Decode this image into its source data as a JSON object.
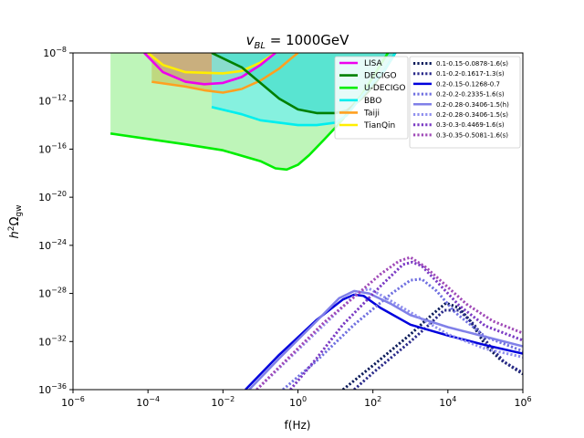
{
  "chart_data": {
    "type": "line",
    "title_main": "v",
    "title_sub": "BL",
    "title_rest": " = 1000GeV",
    "xlabel": "f(Hz)",
    "ylabel_main": "h",
    "ylabel_sup": "2",
    "ylabel_omega": "Ω",
    "ylabel_sub": "gw",
    "x_scale": "log",
    "y_scale": "log",
    "xlim_exp": [
      -6,
      6
    ],
    "ylim_exp": [
      -36,
      -8
    ],
    "x_ticks": [
      {
        "exp": -6,
        "base": "10",
        "label": "−6"
      },
      {
        "exp": -4,
        "base": "10",
        "label": "−4"
      },
      {
        "exp": -2,
        "base": "10",
        "label": "−2"
      },
      {
        "exp": 0,
        "base": "10",
        "label": "0"
      },
      {
        "exp": 2,
        "base": "10",
        "label": "2"
      },
      {
        "exp": 4,
        "base": "10",
        "label": "4"
      },
      {
        "exp": 6,
        "base": "10",
        "label": "6"
      }
    ],
    "y_ticks": [
      {
        "exp": -36,
        "base": "10",
        "label": "−36"
      },
      {
        "exp": -32,
        "base": "10",
        "label": "−32"
      },
      {
        "exp": -28,
        "base": "10",
        "label": "−28"
      },
      {
        "exp": -24,
        "base": "10",
        "label": "−24"
      },
      {
        "exp": -20,
        "base": "10",
        "label": "−20"
      },
      {
        "exp": -16,
        "base": "10",
        "label": "−16"
      },
      {
        "exp": -12,
        "base": "10",
        "label": "−12"
      },
      {
        "exp": -8,
        "base": "10",
        "label": "−8"
      }
    ],
    "detectors": [
      {
        "name": "U-DECIGO",
        "color": "#00ee00",
        "fill": "#aef2a8",
        "fill_opacity": 0.8,
        "points": [
          [
            -5,
            -14.7
          ],
          [
            -3,
            -15.6
          ],
          [
            -2,
            -16.1
          ],
          [
            -1,
            -17.0
          ],
          [
            -0.6,
            -17.6
          ],
          [
            -0.3,
            -17.7
          ],
          [
            0,
            -17.3
          ],
          [
            0.3,
            -16.5
          ],
          [
            0.7,
            -15.2
          ],
          [
            1.0,
            -14.2
          ],
          [
            1.2,
            -13.5
          ],
          [
            1.5,
            -12.2
          ],
          [
            1.7,
            -11.5
          ],
          [
            2.0,
            -10.0
          ],
          [
            2.2,
            -9.0
          ],
          [
            2.5,
            -7.5
          ]
        ]
      },
      {
        "name": "TianQin",
        "color": "#ffee00",
        "fill": "#eef088",
        "fill_opacity": 0.8,
        "points": [
          [
            -4,
            -8.0
          ],
          [
            -3.6,
            -9.0
          ],
          [
            -3,
            -9.6
          ],
          [
            -2,
            -9.7
          ],
          [
            -1.5,
            -9.5
          ],
          [
            -1,
            -8.8
          ],
          [
            -0.6,
            -8.0
          ]
        ]
      },
      {
        "name": "LISA",
        "color": "#ee00ee",
        "fill": "#d07ec0",
        "fill_opacity": 0.75,
        "points": [
          [
            -4.1,
            -8.0
          ],
          [
            -3.6,
            -9.6
          ],
          [
            -3,
            -10.4
          ],
          [
            -2.5,
            -10.6
          ],
          [
            -2,
            -10.5
          ],
          [
            -1.5,
            -10.0
          ],
          [
            -1,
            -9.0
          ],
          [
            -0.6,
            -8.0
          ]
        ]
      },
      {
        "name": "Taiji",
        "color": "#ffa020",
        "fill": "#c0c050",
        "fill_opacity": 0.55,
        "points": [
          [
            -3.9,
            -10.4
          ],
          [
            -3,
            -10.8
          ],
          [
            -2.5,
            -11.1
          ],
          [
            -2,
            -11.3
          ],
          [
            -1.5,
            -11.0
          ],
          [
            -1,
            -10.3
          ],
          [
            -0.5,
            -9.3
          ],
          [
            -0.2,
            -8.5
          ],
          [
            0,
            -8.0
          ]
        ]
      },
      {
        "name": "DECIGO",
        "color": "#008000",
        "fill": "#10c080",
        "fill_opacity": 0.85,
        "points": [
          [
            -2.3,
            -8.0
          ],
          [
            -1.5,
            -9.2
          ],
          [
            -1,
            -10.5
          ],
          [
            -0.5,
            -11.8
          ],
          [
            0,
            -12.7
          ],
          [
            0.5,
            -13.0
          ],
          [
            1,
            -13.0
          ],
          [
            1.3,
            -12.8
          ],
          [
            1.7,
            -11.8
          ],
          [
            2,
            -10.8
          ],
          [
            2.3,
            -9.5
          ],
          [
            2.6,
            -8.0
          ]
        ]
      },
      {
        "name": "BBO",
        "color": "#00eeee",
        "fill": "#6ef0f0",
        "fill_opacity": 0.7,
        "points": [
          [
            -2.3,
            -12.5
          ],
          [
            -1.5,
            -13.1
          ],
          [
            -1,
            -13.6
          ],
          [
            0,
            -14.0
          ],
          [
            0.5,
            -14.0
          ],
          [
            1,
            -13.8
          ],
          [
            1.3,
            -13.2
          ],
          [
            1.6,
            -12.0
          ],
          [
            2,
            -10.5
          ],
          [
            2.3,
            -9.5
          ],
          [
            2.6,
            -8.0
          ]
        ]
      }
    ],
    "series": [
      {
        "name": "0.1-0.15-0.0878-1.6(s)",
        "color": "#0a1a5a",
        "style": "dotted",
        "width": 3,
        "points": [
          [
            1.2,
            -36
          ],
          [
            2,
            -34
          ],
          [
            3,
            -31.4
          ],
          [
            3.6,
            -29.7
          ],
          [
            3.95,
            -28.8
          ],
          [
            4.3,
            -29.2
          ],
          [
            4.6,
            -30.3
          ],
          [
            5.0,
            -32.3
          ],
          [
            5.4,
            -33.5
          ],
          [
            6,
            -34.7
          ]
        ]
      },
      {
        "name": "0.1-0.2-0.1617-1.3(s)",
        "color": "#2a2a8a",
        "style": "dotted",
        "width": 3,
        "points": [
          [
            1.5,
            -36
          ],
          [
            2,
            -34.6
          ],
          [
            3,
            -32
          ],
          [
            3.5,
            -30.6
          ],
          [
            3.9,
            -29.4
          ],
          [
            4.3,
            -29.4
          ],
          [
            4.7,
            -30.6
          ],
          [
            5.1,
            -32.3
          ],
          [
            5.5,
            -33.7
          ],
          [
            6,
            -34.6
          ]
        ]
      },
      {
        "name": "0.2-0.15-0.1268-0.7",
        "color": "#0000dd",
        "style": "solid",
        "width": 2.5,
        "points": [
          [
            -1.4,
            -36
          ],
          [
            -0.5,
            -33.1
          ],
          [
            0.5,
            -30.2
          ],
          [
            1.2,
            -28.5
          ],
          [
            1.5,
            -28.1
          ],
          [
            1.75,
            -28.2
          ],
          [
            2.2,
            -29.2
          ],
          [
            3,
            -30.6
          ],
          [
            4,
            -31.5
          ],
          [
            5,
            -32.3
          ],
          [
            6,
            -33.0
          ]
        ]
      },
      {
        "name": "0.2-0.2-0.2335-1.6(s)",
        "color": "#7070e0",
        "style": "dotted",
        "width": 3,
        "points": [
          [
            -0.4,
            -36
          ],
          [
            0.5,
            -33.6
          ],
          [
            1.5,
            -30.6
          ],
          [
            2.5,
            -28.0
          ],
          [
            3.0,
            -26.9
          ],
          [
            3.3,
            -26.8
          ],
          [
            3.7,
            -27.8
          ],
          [
            4.2,
            -29.6
          ],
          [
            5,
            -31.6
          ],
          [
            6,
            -32.8
          ]
        ]
      },
      {
        "name": "0.2-0.28-0.3406-1.5(h)",
        "color": "#8080e8",
        "style": "solid",
        "width": 2.5,
        "points": [
          [
            -1.3,
            -36
          ],
          [
            -0.5,
            -33.4
          ],
          [
            0.5,
            -30.3
          ],
          [
            1.1,
            -28.4
          ],
          [
            1.5,
            -27.8
          ],
          [
            1.9,
            -28.0
          ],
          [
            2.5,
            -28.9
          ],
          [
            3,
            -29.8
          ],
          [
            4,
            -30.8
          ],
          [
            5,
            -31.6
          ],
          [
            6,
            -32.4
          ]
        ]
      },
      {
        "name": "0.2-0.28-0.3406-1.5(s)",
        "color": "#9090ee",
        "style": "dotted",
        "width": 3,
        "points": [
          [
            -1.1,
            -36
          ],
          [
            -0.3,
            -33.6
          ],
          [
            0.6,
            -30.9
          ],
          [
            1.2,
            -29.1
          ],
          [
            1.6,
            -27.9
          ],
          [
            1.9,
            -27.6
          ],
          [
            2.3,
            -28.3
          ],
          [
            2.8,
            -29.2
          ],
          [
            4,
            -31.4
          ],
          [
            5,
            -32.6
          ],
          [
            6,
            -33.3
          ]
        ]
      },
      {
        "name": "0.3-0.3-0.4469-1.6(s)",
        "color": "#7a3ac4",
        "style": "dotted",
        "width": 3,
        "points": [
          [
            -0.2,
            -36
          ],
          [
            0.5,
            -33.4
          ],
          [
            1.2,
            -30.6
          ],
          [
            2.2,
            -27.4
          ],
          [
            2.8,
            -25.6
          ],
          [
            3.05,
            -25.4
          ],
          [
            3.3,
            -25.7
          ],
          [
            3.7,
            -27.0
          ],
          [
            4.3,
            -29.0
          ],
          [
            5,
            -30.7
          ],
          [
            6,
            -31.9
          ]
        ]
      },
      {
        "name": "0.3-0.35-0.5081-1.6(s)",
        "color": "#a04ab8",
        "style": "dotted",
        "width": 3,
        "points": [
          [
            -1.1,
            -36
          ],
          [
            -0.3,
            -33.5
          ],
          [
            0.7,
            -30.4
          ],
          [
            1.5,
            -28.3
          ],
          [
            2.2,
            -26.4
          ],
          [
            2.7,
            -25.3
          ],
          [
            3.0,
            -25.0
          ],
          [
            3.4,
            -25.8
          ],
          [
            3.9,
            -27.2
          ],
          [
            4.5,
            -28.9
          ],
          [
            5.2,
            -30.3
          ],
          [
            6,
            -31.3
          ]
        ]
      }
    ]
  }
}
